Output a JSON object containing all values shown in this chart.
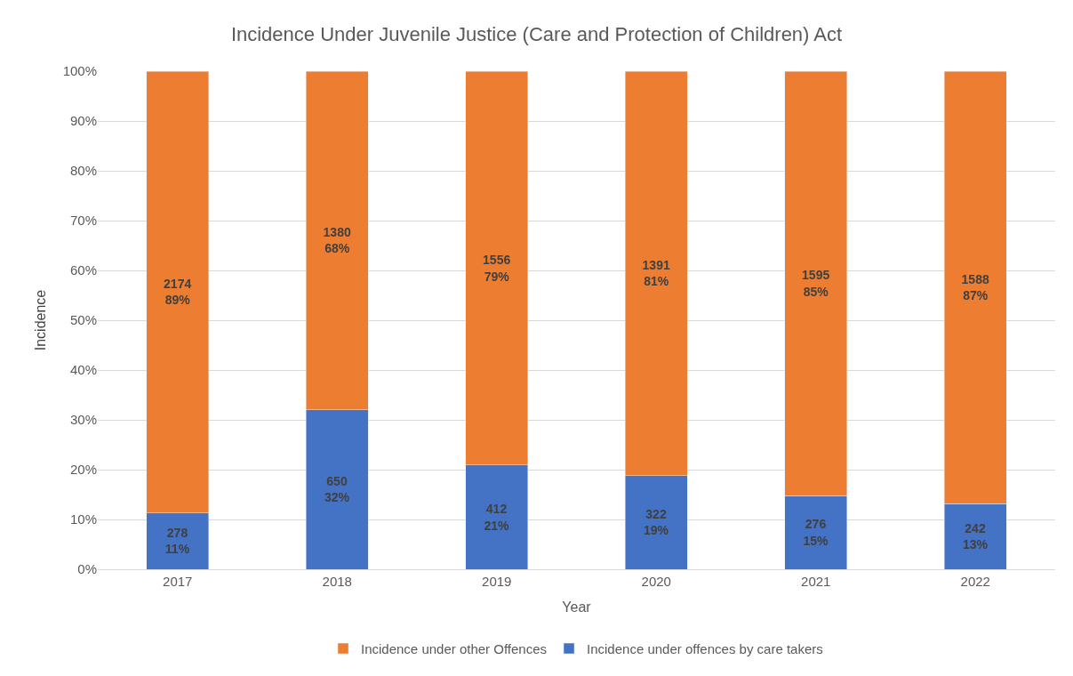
{
  "chart_data": {
    "type": "bar",
    "title": "Incidence Under Juvenile Justice (Care and Protection of Children) Act",
    "xlabel": "Year",
    "ylabel": "Incidence",
    "categories": [
      "2017",
      "2018",
      "2019",
      "2020",
      "2021",
      "2022"
    ],
    "stacked": true,
    "series": [
      {
        "name": "Incidence under offences by care takers",
        "color": "#4472c4",
        "values": [
          11.3,
          32.0,
          20.9,
          18.8,
          14.8,
          13.2
        ],
        "value_labels": [
          "278\n11%",
          "650\n32%",
          "412\n21%",
          "322\n19%",
          "276\n15%",
          "242\n13%"
        ]
      },
      {
        "name": "Incidence under other Offences",
        "color": "#ed7d31",
        "values": [
          88.7,
          68.0,
          79.1,
          81.2,
          85.2,
          86.8
        ],
        "value_labels": [
          "2174\n89%",
          "1380\n68%",
          "1556\n79%",
          "1391\n81%",
          "1595\n85%",
          "1588\n87%"
        ]
      }
    ],
    "ylim": [
      0,
      100
    ],
    "yticks": [
      {
        "value": 0,
        "label": "0%"
      },
      {
        "value": 10,
        "label": "10%"
      },
      {
        "value": 20,
        "label": "20%"
      },
      {
        "value": 30,
        "label": "30%"
      },
      {
        "value": 40,
        "label": "40%"
      },
      {
        "value": 50,
        "label": "50%"
      },
      {
        "value": 60,
        "label": "60%"
      },
      {
        "value": 70,
        "label": "70%"
      },
      {
        "value": 80,
        "label": "80%"
      },
      {
        "value": 90,
        "label": "90%"
      },
      {
        "value": 100,
        "label": "100%"
      }
    ],
    "grid": "y",
    "legend": "bottom"
  }
}
